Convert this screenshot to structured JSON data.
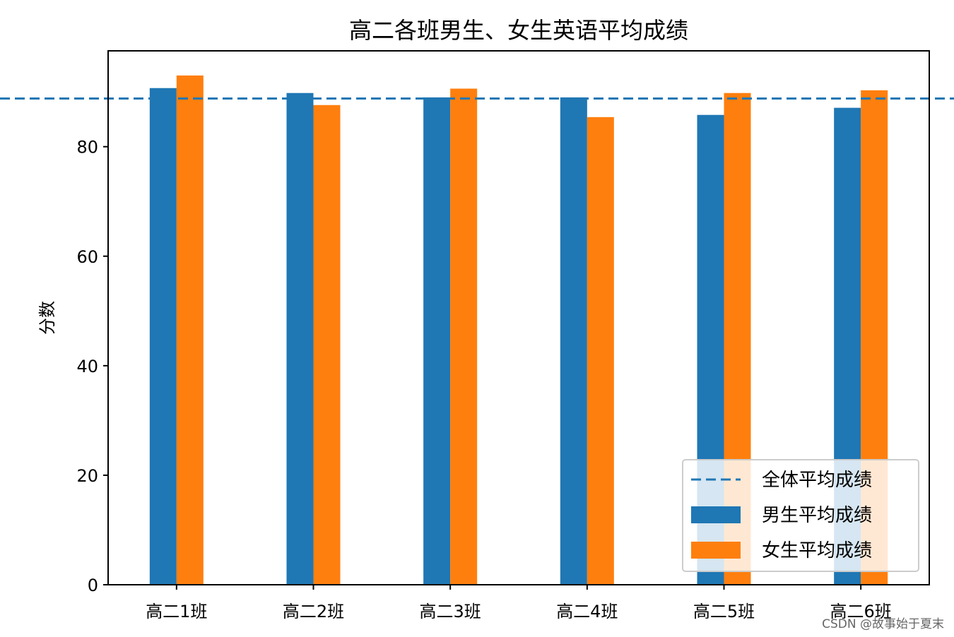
{
  "colors": {
    "boys": "#1f77b4",
    "girls": "#ff7f0e",
    "overall": "#1f77b4",
    "axes": "#000000"
  },
  "chart_data": {
    "type": "bar",
    "title": "高二各班男生、女生英语平均成绩",
    "xlabel": "",
    "ylabel": "分数",
    "categories": [
      "高二1班",
      "高二2班",
      "高二3班",
      "高二4班",
      "高二5班",
      "高二6班"
    ],
    "series": [
      {
        "name": "男生平均成绩",
        "values": [
          90.7,
          89.8,
          89.0,
          89.0,
          85.8,
          87.1
        ]
      },
      {
        "name": "女生平均成绩",
        "values": [
          93.0,
          87.6,
          90.6,
          85.4,
          89.8,
          90.3
        ]
      }
    ],
    "reference_line": {
      "name": "全体平均成绩",
      "value": 88.8,
      "style": "dashed"
    },
    "ylim": [
      0,
      97.5
    ],
    "yticks": [
      0,
      20,
      40,
      60,
      80
    ],
    "grid": false,
    "legend": {
      "placement": "lower right",
      "entries": [
        "全体平均成绩",
        "男生平均成绩",
        "女生平均成绩"
      ]
    }
  },
  "watermark": "CSDN @故事始于夏末"
}
